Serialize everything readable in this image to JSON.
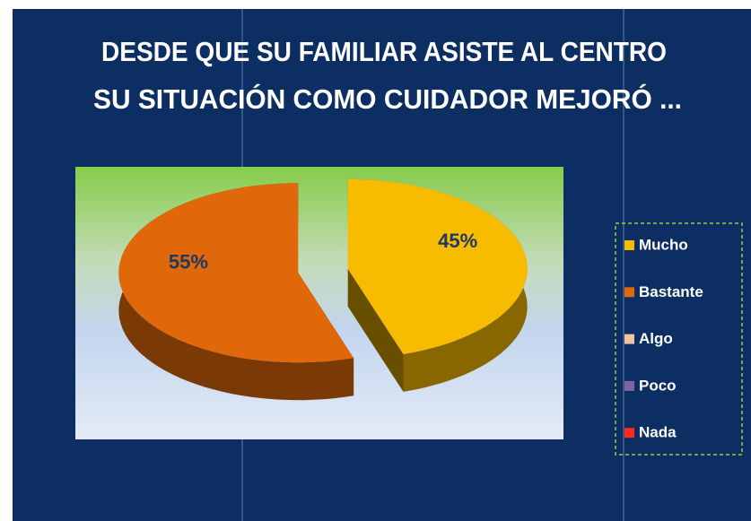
{
  "chart_data": {
    "type": "pie",
    "title": [
      "DESDE QUE SU FAMILIAR ASISTE AL CENTRO",
      "SU SITUACIÓN COMO CUIDADOR MEJORÓ ..."
    ],
    "categories": [
      "Mucho",
      "Bastante",
      "Algo",
      "Poco",
      "Nada"
    ],
    "values": [
      45,
      55,
      0,
      0,
      0
    ],
    "value_labels": [
      "45%",
      "55%",
      null,
      null,
      null
    ],
    "colors": [
      "#f7bc00",
      "#e0680a",
      "#f2c4a0",
      "#8064a2",
      "#ff2a1a"
    ],
    "legend": "right"
  }
}
